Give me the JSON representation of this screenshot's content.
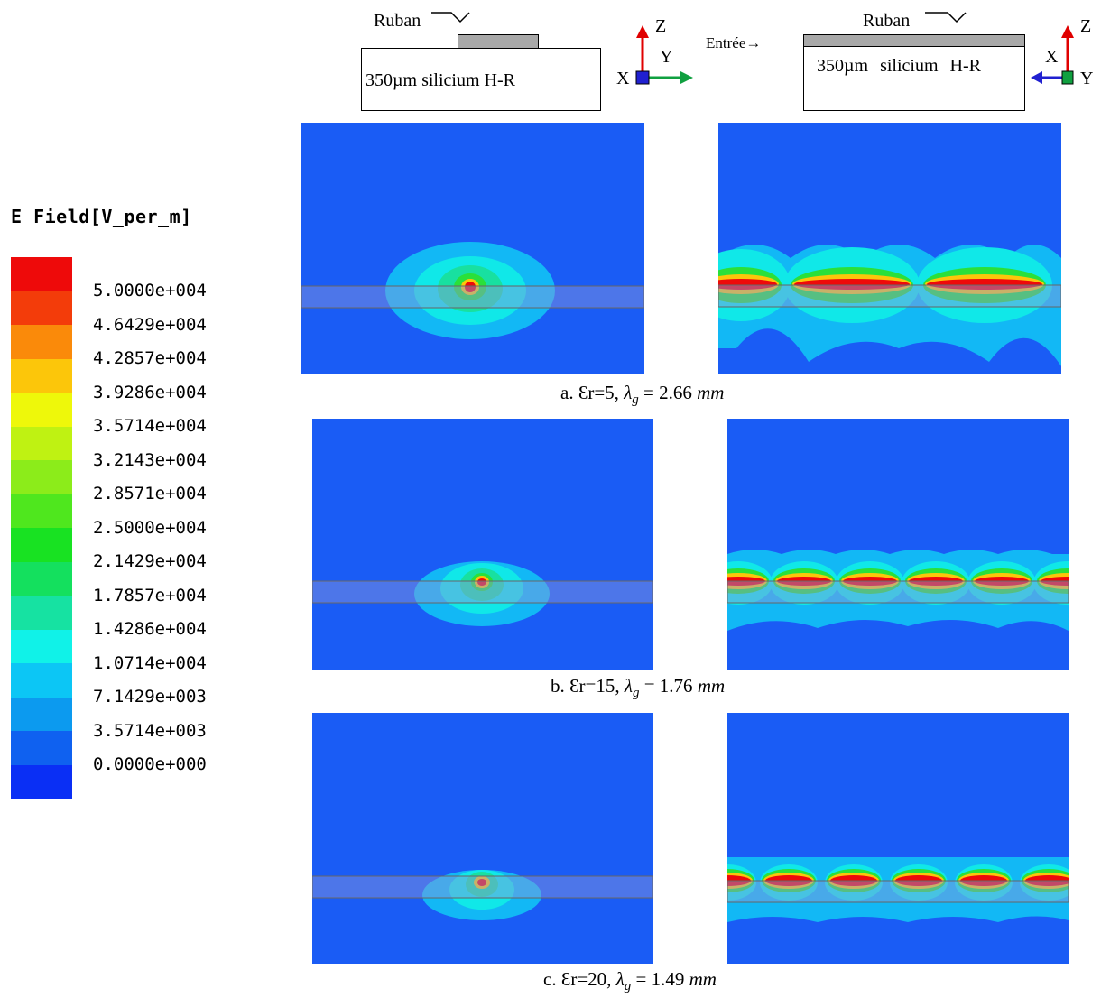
{
  "schematic": {
    "left": {
      "strip_label": "Ruban",
      "substrate_label": "350µm silicium H-R"
    },
    "right": {
      "strip_label": "Ruban",
      "input_label": "Entrée→",
      "substrate_label": "350µm silicium H-R"
    },
    "axes_left": {
      "z": "Z",
      "x": "X",
      "y": "Y"
    },
    "axes_right": {
      "z": "Z",
      "x": "X",
      "y": "Y"
    }
  },
  "legend": {
    "title": "E Field[V_per_m]",
    "ticks": [
      "5.0000e+004",
      "4.6429e+004",
      "4.2857e+004",
      "3.9286e+004",
      "3.5714e+004",
      "3.2143e+004",
      "2.8571e+004",
      "2.5000e+004",
      "2.1429e+004",
      "1.7857e+004",
      "1.4286e+004",
      "1.0714e+004",
      "7.1429e+003",
      "3.5714e+003",
      "0.0000e+000"
    ],
    "colors": [
      "#ee0a0a",
      "#f33c0a",
      "#fa8a0a",
      "#fcc60a",
      "#eef80a",
      "#bff212",
      "#8cec1a",
      "#4fe71e",
      "#18e222",
      "#14e05e",
      "#16e2a2",
      "#10f2e8",
      "#0cc6f5",
      "#0c9aef",
      "#0f61f0",
      "#0a2ff5"
    ]
  },
  "captions": {
    "a": {
      "text": "a. Ɛr=5, ",
      "lambda": "λ",
      "sub": "g",
      "eq": " = 2.66 ",
      "unit": "mm"
    },
    "b": {
      "text": "b. Ɛr=15, ",
      "lambda": "λ",
      "sub": "g",
      "eq": " = 1.76 ",
      "unit": "mm"
    },
    "c": {
      "text": "c. Ɛr=20, ",
      "lambda": "λ",
      "sub": "g",
      "eq": " = 1.49 ",
      "unit": "mm"
    }
  }
}
